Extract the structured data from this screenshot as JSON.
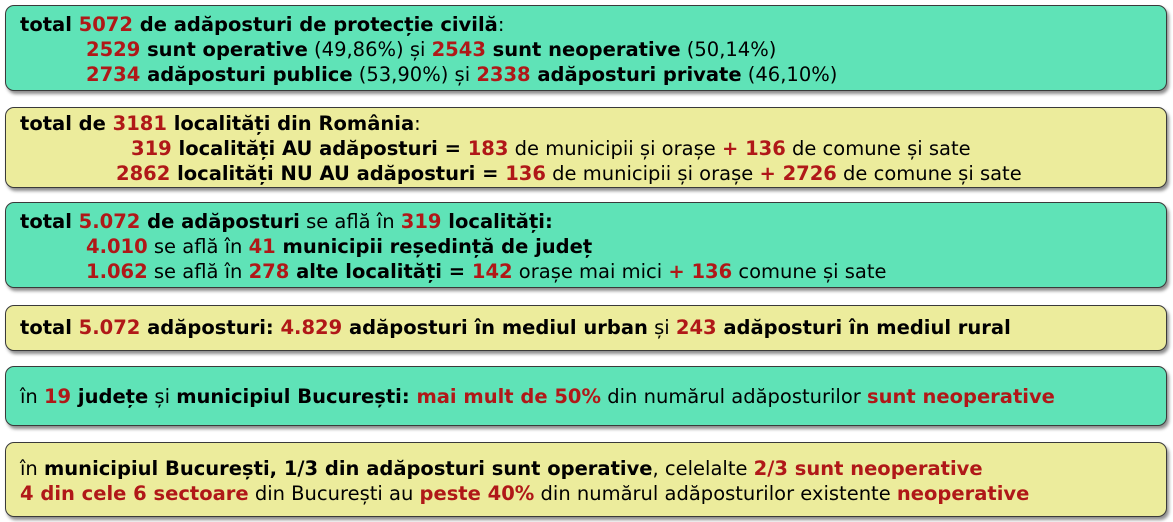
{
  "box1": {
    "l1": {
      "a": "total ",
      "b": "5072",
      "c": " de adăposturi de protecție civilă",
      ":": ":"
    },
    "l2": {
      "a": "2529",
      "b": " sunt operative",
      "c": " (49,86%) și ",
      "d": "2543",
      "e": " sunt neoperative",
      "f": " (50,14%)"
    },
    "l3": {
      "a": "2734",
      "b": " adăposturi publice",
      "c": " (53,90%) și ",
      "d": "2338",
      "e": " adăposturi private",
      "f": " (46,10%)"
    }
  },
  "box2": {
    "l1": {
      "a": "total de ",
      "b": "3181",
      "c": " localități din România",
      "d": ":"
    },
    "l2": {
      "a": "319",
      "b": " localități AU adăposturi = ",
      "c": "183",
      "d": " de municipii și orașe ",
      "e": "+  136",
      "f": " de comune și sate"
    },
    "l3": {
      "a": "2862",
      "b": " localități NU AU adăposturi = ",
      "c": "136",
      "d": " de municipii și orașe ",
      "e": "+ 2726",
      "f": " de comune și sate"
    }
  },
  "box3": {
    "l1": {
      "a": "total ",
      "b": "5.072",
      "c": " de adăposturi",
      "d": " se află în ",
      "e": "319",
      "f": " localități:"
    },
    "l2": {
      "a": "4.010",
      "b": " se află în ",
      "c": "41",
      "d": " municipii reședință de județ"
    },
    "l3": {
      "a": "1.062",
      "b": " se află în ",
      "c": "278",
      "d": " alte localități = ",
      "e": "142",
      "f": " orașe mai mici ",
      "g": "+  136",
      "h": " comune și sate"
    }
  },
  "box4": {
    "l1": {
      "a": "total ",
      "b": "5.072",
      "c": " adăposturi: ",
      "d": "4.829",
      "e": " adăposturi în mediul urban",
      "f": " și ",
      "g": "243",
      "h": " adăposturi în mediul rural"
    }
  },
  "box5": {
    "l1": {
      "a": "în ",
      "b": "19",
      "c": " județe",
      "d": " și ",
      "e": "municipiul București:",
      "f": " mai mult de 50%",
      "g": " din numărul adăposturilor ",
      "h": "sunt neoperative"
    }
  },
  "box6": {
    "l1": {
      "a": "în ",
      "b": "municipiul București",
      "c": ", 1/3 din adăposturi sunt operative",
      "d": ", celelalte ",
      "e": "2/3 sunt neoperative"
    },
    "l2": {
      "a": "4 din cele 6 sectoare",
      "b": " din București au ",
      "c": "peste 40%",
      "d": " din numărul adăposturilor existente ",
      "e": "neoperative"
    }
  },
  "colors": {
    "green_box": "#5fe3b7",
    "yellow_box": "#ecec9c",
    "highlight_red": "#b01818"
  }
}
